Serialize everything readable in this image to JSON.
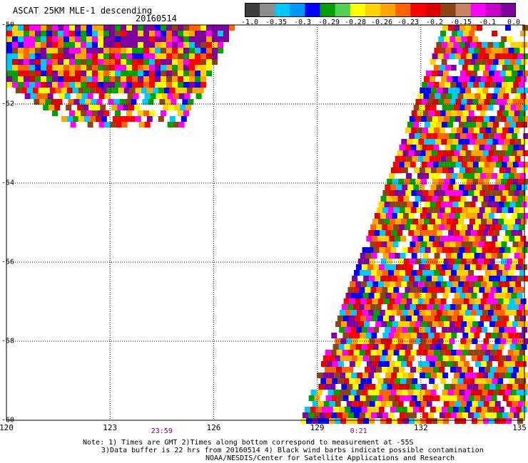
{
  "header": {
    "title": "ASCAT 25KM MLE-1 descending",
    "date": "20160514"
  },
  "colorbar": {
    "labels": [
      "-1.0",
      "-0.35",
      "-0.3",
      "-0.29",
      "-0.28",
      "-0.26",
      "-0.23",
      "-0.2",
      "-0.15",
      "-0.1",
      "0.0"
    ],
    "colors": [
      "#3c3c3c",
      "#8c8c8c",
      "#00c8ff",
      "#0096ff",
      "#0000ff",
      "#00a000",
      "#50d250",
      "#ffff00",
      "#ffd200",
      "#ffa500",
      "#ff6400",
      "#ff0000",
      "#dc0000",
      "#8b4513",
      "#c88264",
      "#ff00ff",
      "#c800c8",
      "#8000a0"
    ]
  },
  "map": {
    "lat_labels": [
      "-50",
      "-52",
      "-54",
      "-56",
      "-58",
      "-60"
    ],
    "lon_labels": [
      "120",
      "123",
      "126",
      "129",
      "132",
      "135"
    ],
    "times": [
      {
        "label": "23:59",
        "lon": 124.5
      },
      {
        "label": "0:21",
        "lon": 130.2
      }
    ],
    "cell_colors": [
      "#ff0000",
      "#ff6400",
      "#ffa500",
      "#ffd200",
      "#ffff00",
      "#00a000",
      "#0000ff",
      "#00c8ff",
      "#ff00ff",
      "#8000a0",
      "#8b4513",
      "#dc0000",
      "#ffffff"
    ]
  },
  "notes": [
    "Note: 1) Times are GMT 2)Times along bottom correspond to measurement at -55S",
    "3)Data buffer is 22 hrs from 20160514 4) Black wind barbs indicate possible contamination",
    "NOAA/NESDIS/Center for Satellite Applications and Research"
  ]
}
